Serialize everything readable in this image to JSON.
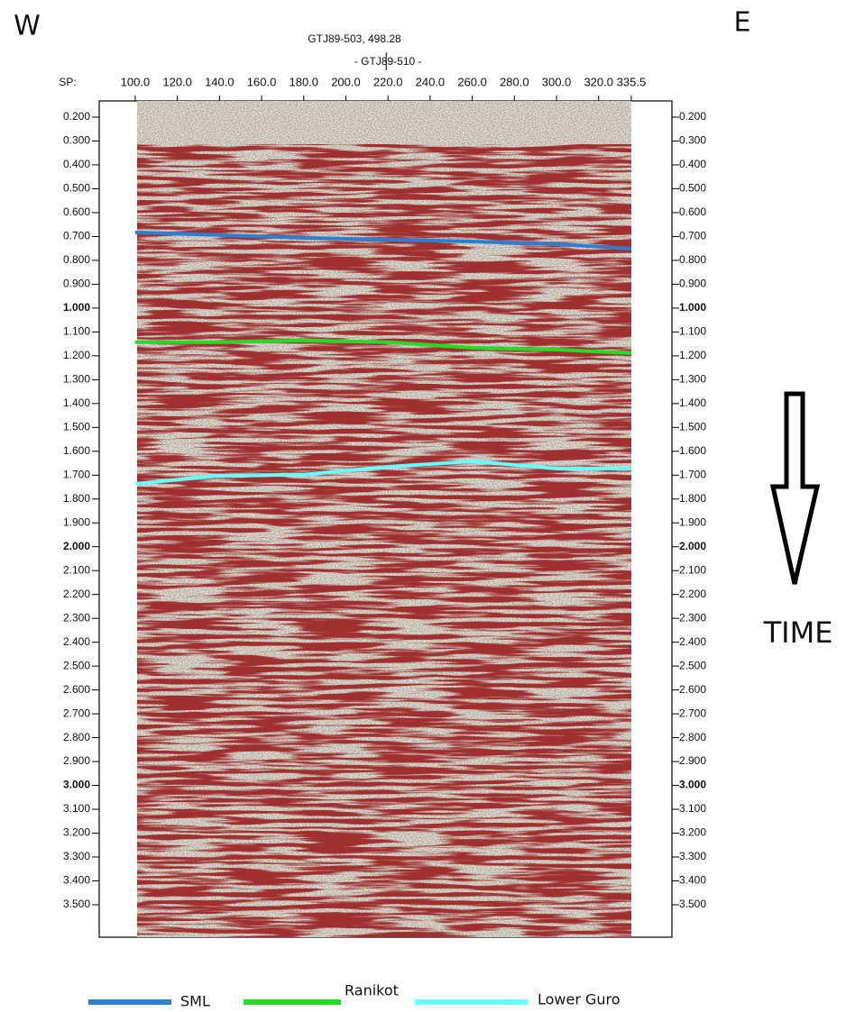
{
  "chart_data": {
    "type": "line",
    "title": "GTJ89-503, 498.28",
    "annotation": "- GTJ89-510 -",
    "annotation_x": 220,
    "xlabel": "SP:",
    "direction_labels": [
      "W",
      "E"
    ],
    "arrow_label": "TIME",
    "x": [
      100,
      140,
      180,
      220,
      260,
      300,
      335.5
    ],
    "series": [
      {
        "name": "SML",
        "color": "#2a7fd4",
        "values": [
          0.683,
          0.694,
          0.706,
          0.713,
          0.721,
          0.732,
          0.751
        ]
      },
      {
        "name": "Ranikot",
        "color": "#22dd22",
        "values": [
          1.143,
          1.143,
          1.136,
          1.143,
          1.166,
          1.174,
          1.189
        ]
      },
      {
        "name": "Lower Guro",
        "color": "#66ffff",
        "values": [
          1.736,
          1.702,
          1.698,
          1.665,
          1.642,
          1.672,
          1.672
        ]
      }
    ],
    "xlim": [
      82.9,
      354.8
    ],
    "xticks": [
      {
        "value": 100,
        "label": "100.0"
      },
      {
        "value": 120,
        "label": "120.0"
      },
      {
        "value": 140,
        "label": "140.0"
      },
      {
        "value": 160,
        "label": "160.0"
      },
      {
        "value": 180,
        "label": "180.0"
      },
      {
        "value": 200,
        "label": "200.0"
      },
      {
        "value": 220,
        "label": "220.0"
      },
      {
        "value": 240,
        "label": "240.0"
      },
      {
        "value": 260,
        "label": "260.0"
      },
      {
        "value": 280,
        "label": "280.0"
      },
      {
        "value": 300,
        "label": "300.0"
      },
      {
        "value": 320,
        "label": "320.0"
      },
      335.5
    ],
    "ylim": [
      0.132,
      3.636
    ],
    "y_reversed": true,
    "yticks": [
      {
        "value": 0.2,
        "label": "0.200"
      },
      {
        "value": 0.3,
        "label": "0.300"
      },
      {
        "value": 0.4,
        "label": "0.400"
      },
      {
        "value": 0.5,
        "label": "0.500"
      },
      {
        "value": 0.6,
        "label": "0.600"
      },
      {
        "value": 0.7,
        "label": "0.700"
      },
      {
        "value": 0.8,
        "label": "0.800"
      },
      {
        "value": 0.9,
        "label": "0.900"
      },
      {
        "value": 1,
        "label": "1.000"
      },
      {
        "value": 1.1,
        "label": "1.100"
      },
      {
        "value": 1.2,
        "label": "1.200"
      },
      {
        "value": 1.3,
        "label": "1.300"
      },
      {
        "value": 1.4,
        "label": "1.400"
      },
      {
        "value": 1.5,
        "label": "1.500"
      },
      {
        "value": 1.6,
        "label": "1.600"
      },
      {
        "value": 1.7,
        "label": "1.700"
      },
      {
        "value": 1.8,
        "label": "1.800"
      },
      {
        "value": 1.9,
        "label": "1.900"
      },
      {
        "value": 2,
        "label": "2.000"
      },
      {
        "value": 2.1,
        "label": "2.100"
      },
      {
        "value": 2.2,
        "label": "2.200"
      },
      {
        "value": 2.3,
        "label": "2.300"
      },
      {
        "value": 2.4,
        "label": "2.400"
      },
      {
        "value": 2.5,
        "label": "2.500"
      },
      {
        "value": 2.6,
        "label": "2.600"
      },
      {
        "value": 2.7,
        "label": "2.700"
      },
      {
        "value": 2.8,
        "label": "2.800"
      },
      {
        "value": 2.9,
        "label": "2.900"
      },
      {
        "value": 3,
        "label": "3.000"
      },
      {
        "value": 3.1,
        "label": "3.100"
      },
      {
        "value": 3.2,
        "label": "3.200"
      },
      {
        "value": 3.3,
        "label": "3.300"
      },
      {
        "value": 3.4,
        "label": "3.400"
      },
      {
        "value": 3.5,
        "label": "3.500"
      }
    ],
    "legend_position": "bottom"
  }
}
